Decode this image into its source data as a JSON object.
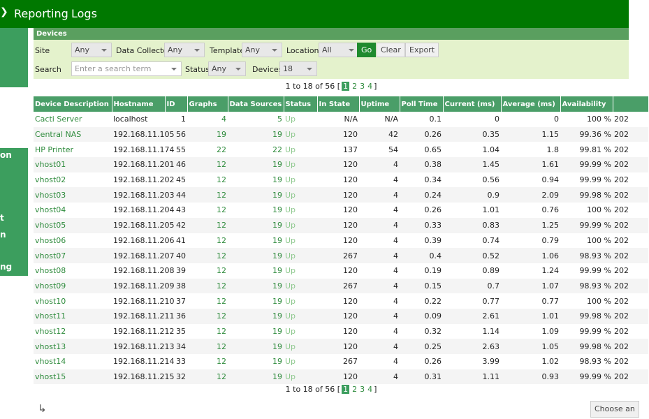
{
  "nav": [
    "Reporting",
    "Logs"
  ],
  "sidebar": [
    "on",
    "t",
    "n",
    "ng"
  ],
  "filter": {
    "title": "Devices",
    "row1": [
      {
        "label": "Site",
        "value": "Any"
      },
      {
        "label": "Data Collector",
        "value": "Any"
      },
      {
        "label": "Template",
        "value": "Any"
      },
      {
        "label": "Location",
        "value": "All"
      }
    ],
    "buttons": [
      "Go",
      "Clear",
      "Export"
    ],
    "search": {
      "label": "Search",
      "placeholder": "Enter a search term"
    },
    "row2": [
      {
        "label": "Status",
        "value": "Any"
      },
      {
        "label": "Devices",
        "value": "18"
      }
    ]
  },
  "pager": {
    "summary": "1 to 18 of 56 [",
    "pages": [
      "1",
      "2",
      "3",
      "4"
    ],
    "close": "]"
  },
  "table": {
    "columns": [
      "Device Description",
      "Hostname",
      "ID",
      "Graphs",
      "Data Sources",
      "Status",
      "In State",
      "Uptime",
      "Poll Time",
      "Current (ms)",
      "Average (ms)",
      "Availability",
      ""
    ],
    "rows": [
      [
        "Cacti Server",
        "localhost",
        "1",
        "4",
        "5",
        "Up",
        "N/A",
        "N/A",
        "0.1",
        "0",
        "0",
        "100 %",
        "202"
      ],
      [
        "Central NAS",
        "192.168.11.105",
        "56",
        "19",
        "19",
        "Up",
        "120",
        "42",
        "0.26",
        "0.35",
        "1.15",
        "99.36 %",
        "202"
      ],
      [
        "HP Printer",
        "192.168.11.174",
        "55",
        "22",
        "22",
        "Up",
        "137",
        "54",
        "0.65",
        "1.04",
        "1.8",
        "99.81 %",
        "202"
      ],
      [
        "vhost01",
        "192.168.11.201",
        "46",
        "12",
        "19",
        "Up",
        "120",
        "4",
        "0.38",
        "1.45",
        "1.61",
        "99.99 %",
        "202"
      ],
      [
        "vhost02",
        "192.168.11.202",
        "45",
        "12",
        "19",
        "Up",
        "120",
        "4",
        "0.34",
        "0.56",
        "0.94",
        "99.99 %",
        "202"
      ],
      [
        "vhost03",
        "192.168.11.203",
        "44",
        "12",
        "19",
        "Up",
        "120",
        "4",
        "0.24",
        "0.9",
        "2.09",
        "99.98 %",
        "202"
      ],
      [
        "vhost04",
        "192.168.11.204",
        "43",
        "12",
        "19",
        "Up",
        "120",
        "4",
        "0.26",
        "1.01",
        "0.76",
        "100 %",
        "202"
      ],
      [
        "vhost05",
        "192.168.11.205",
        "42",
        "12",
        "19",
        "Up",
        "120",
        "4",
        "0.33",
        "0.83",
        "1.25",
        "99.99 %",
        "202"
      ],
      [
        "vhost06",
        "192.168.11.206",
        "41",
        "12",
        "19",
        "Up",
        "120",
        "4",
        "0.39",
        "0.74",
        "0.79",
        "100 %",
        "202"
      ],
      [
        "vhost07",
        "192.168.11.207",
        "40",
        "12",
        "19",
        "Up",
        "267",
        "4",
        "0.4",
        "0.52",
        "1.06",
        "98.93 %",
        "202"
      ],
      [
        "vhost08",
        "192.168.11.208",
        "39",
        "12",
        "19",
        "Up",
        "120",
        "4",
        "0.19",
        "0.89",
        "1.24",
        "99.99 %",
        "202"
      ],
      [
        "vhost09",
        "192.168.11.209",
        "38",
        "12",
        "19",
        "Up",
        "267",
        "4",
        "0.15",
        "0.7",
        "1.07",
        "98.93 %",
        "202"
      ],
      [
        "vhost10",
        "192.168.11.210",
        "37",
        "12",
        "19",
        "Up",
        "120",
        "4",
        "0.22",
        "0.77",
        "0.77",
        "100 %",
        "202"
      ],
      [
        "vhost11",
        "192.168.11.211",
        "36",
        "12",
        "19",
        "Up",
        "120",
        "4",
        "0.09",
        "2.61",
        "1.01",
        "99.98 %",
        "202"
      ],
      [
        "vhost12",
        "192.168.11.212",
        "35",
        "12",
        "19",
        "Up",
        "120",
        "4",
        "0.32",
        "1.14",
        "1.09",
        "99.99 %",
        "202"
      ],
      [
        "vhost13",
        "192.168.11.213",
        "34",
        "12",
        "19",
        "Up",
        "120",
        "4",
        "0.25",
        "2.63",
        "1.05",
        "99.98 %",
        "202"
      ],
      [
        "vhost14",
        "192.168.11.214",
        "33",
        "12",
        "19",
        "Up",
        "267",
        "4",
        "0.26",
        "3.99",
        "1.02",
        "98.93 %",
        "202"
      ],
      [
        "vhost15",
        "192.168.11.215",
        "32",
        "12",
        "19",
        "Up",
        "120",
        "4",
        "0.31",
        "1.11",
        "0.93",
        "99.99 %",
        "202"
      ]
    ]
  },
  "footer": {
    "button": "Choose an"
  }
}
